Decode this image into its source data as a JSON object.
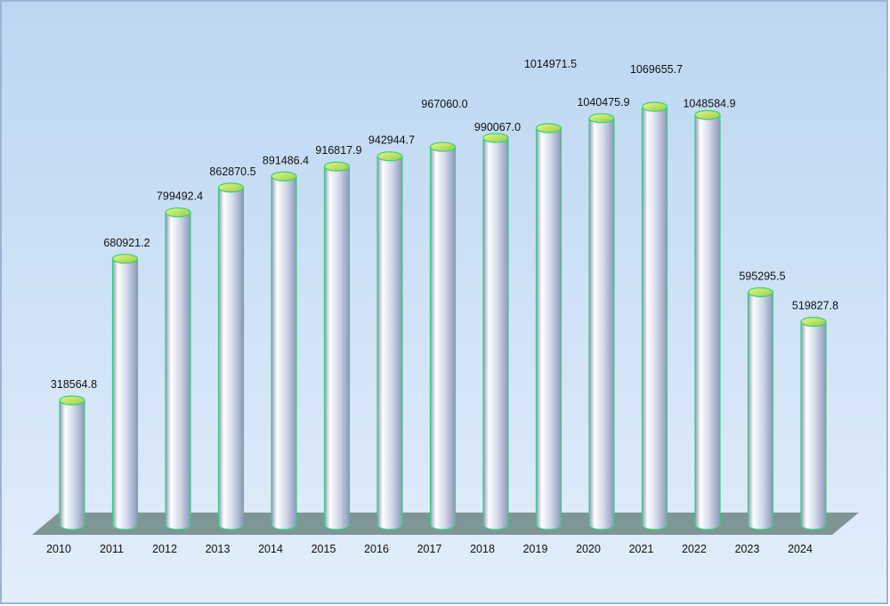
{
  "chart_data": {
    "type": "bar",
    "style": "3d-cylinder",
    "title": "",
    "xlabel": "",
    "ylabel": "",
    "categories": [
      "2010",
      "2011",
      "2012",
      "2013",
      "2014",
      "2015",
      "2016",
      "2017",
      "2018",
      "2019",
      "2020",
      "2021",
      "2022",
      "2023",
      "2024"
    ],
    "values": [
      318564.8,
      680921.2,
      799492.4,
      862870.5,
      891486.4,
      916817.9,
      942944.7,
      967060.0,
      990067.0,
      1014971.5,
      1040475.9,
      1069655.7,
      1048584.9,
      595295.5,
      519827.8
    ],
    "value_labels": [
      "318564.8",
      "680921.2",
      "799492.4",
      "862870.5",
      "891486.4",
      "916817.9",
      "942944.7",
      "967060.0",
      "990067.0",
      "1014971.5",
      "1040475.9",
      "1069655.7",
      "1048584.9",
      "595295.5",
      "519827.8"
    ],
    "ylim": [
      0,
      1200000
    ],
    "grid": false,
    "legend": "none"
  },
  "colors": {
    "background_top": "#bcd6f2",
    "background_bottom": "#e2eefb",
    "frame_border": "#9ab4d6",
    "floor": "#7f9696",
    "cylinder_light": "#ffffff",
    "cylinder_mid": "#cfd6e8",
    "cylinder_dark": "#8e97ba",
    "rim_green": "#33d17a",
    "cap_light": "#e8f78a",
    "cap_dark": "#8fcf4a"
  }
}
